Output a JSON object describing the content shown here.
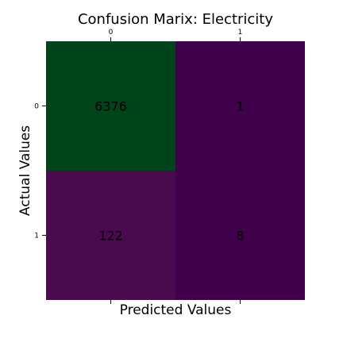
{
  "chart_data": {
    "type": "heatmap",
    "title": "Confusion Marix: Electricity",
    "xlabel": "Predicted Values",
    "ylabel": "Actual Values",
    "x_categories": [
      "0",
      "1"
    ],
    "y_categories": [
      "0",
      "1"
    ],
    "x_tick_position": "top",
    "values": [
      [
        6376,
        1
      ],
      [
        122,
        8
      ]
    ],
    "cell_colors": [
      [
        "#00441b",
        "#40004b"
      ],
      [
        "#4a0a4e",
        "#40004b"
      ]
    ],
    "grid": false,
    "legend": "none"
  }
}
